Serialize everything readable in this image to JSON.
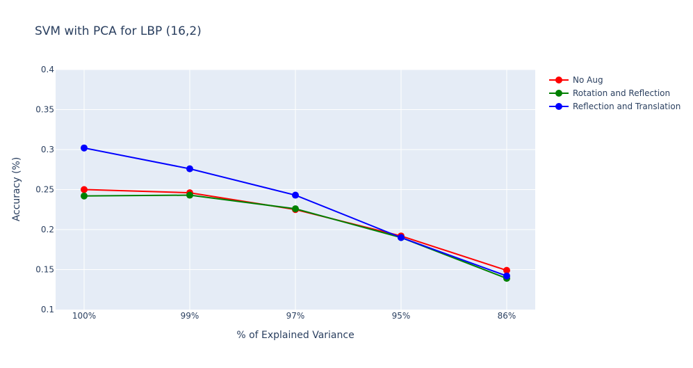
{
  "chart_data": {
    "type": "line",
    "title": "SVM with PCA for LBP (16,2)",
    "xlabel": "% of Explained Variance",
    "ylabel": "Accuracy (%)",
    "categories": [
      "100%",
      "99%",
      "97%",
      "95%",
      "86%"
    ],
    "ylim": [
      0.1,
      0.4
    ],
    "yticks": [
      0.1,
      0.15,
      0.2,
      0.25,
      0.3,
      0.35,
      0.4
    ],
    "ytick_labels": [
      "0.1",
      "0.15",
      "0.2",
      "0.25",
      "0.3",
      "0.35",
      "0.4"
    ],
    "grid": true,
    "legend_position": "top-right",
    "series": [
      {
        "name": "No Aug",
        "color": "#ff0000",
        "values": [
          0.25,
          0.246,
          0.225,
          0.192,
          0.149
        ]
      },
      {
        "name": "Rotation and Reflection",
        "color": "#008000",
        "values": [
          0.242,
          0.243,
          0.226,
          0.19,
          0.139
        ]
      },
      {
        "name": "Reflection and Translation",
        "color": "#0000ff",
        "values": [
          0.302,
          0.276,
          0.243,
          0.19,
          0.142
        ]
      }
    ]
  }
}
